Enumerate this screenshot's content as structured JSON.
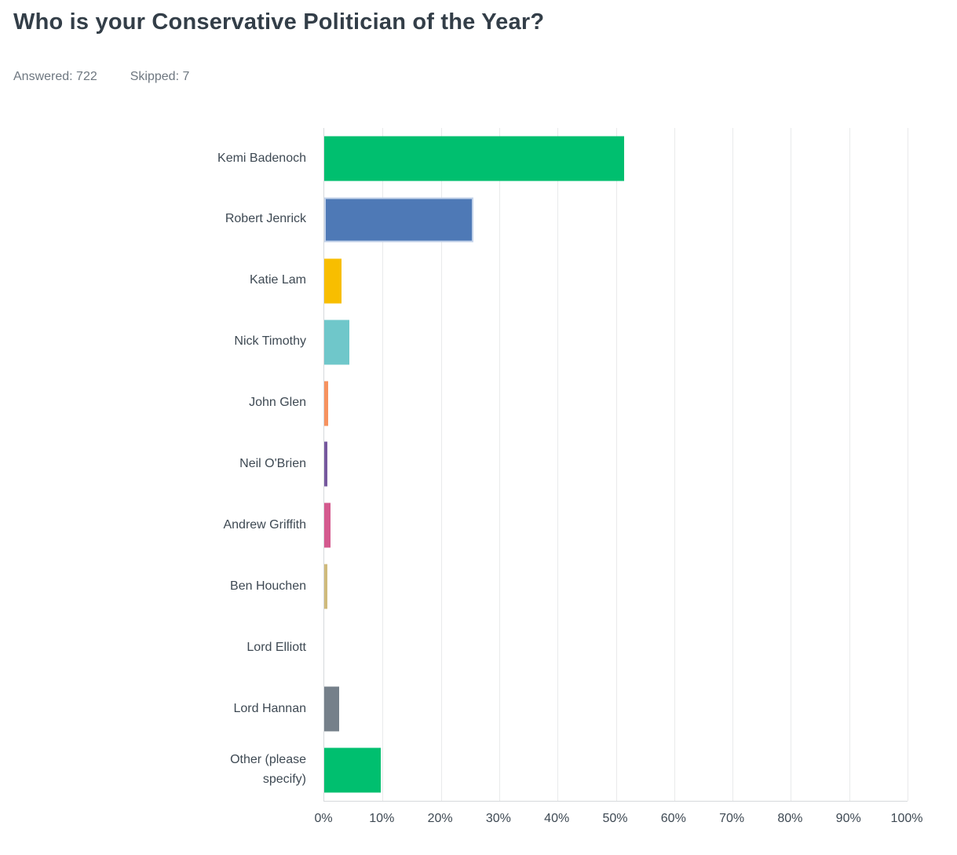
{
  "page": {
    "title": "Who is your Conservative Politician of the Year?",
    "answered_label": "Answered:",
    "answered_value": "722",
    "skipped_label": "Skipped:",
    "skipped_value": "7"
  },
  "colors": {
    "background": "#ffffff",
    "title_text": "#333e48",
    "meta_text": "#6e7780",
    "label_text": "#3e4953",
    "tick_text": "#3e4953",
    "gridline": "#e9eaeb",
    "axis_line": "#d6d9dc",
    "highlight_border": "#c3d2e9"
  },
  "chart_data": {
    "type": "bar",
    "orientation": "horizontal",
    "title": "Who is your Conservative Politician of the Year?",
    "grid": "vertical",
    "legend": "none",
    "xlim": [
      0,
      100
    ],
    "xlabel": "",
    "ylabel": "",
    "x_ticks": [
      "0%",
      "10%",
      "20%",
      "30%",
      "40%",
      "50%",
      "60%",
      "70%",
      "80%",
      "90%",
      "100%"
    ],
    "x_tick_values": [
      0,
      10,
      20,
      30,
      40,
      50,
      60,
      70,
      80,
      90,
      100
    ],
    "categories": [
      "Kemi Badenoch",
      "Robert Jenrick",
      "Katie Lam",
      "Nick Timothy",
      "John Glen",
      "Neil O'Brien",
      "Andrew Griffith",
      "Ben Houchen",
      "Lord Elliott",
      "Lord Hannan",
      "Other (please specify)"
    ],
    "values": [
      51.4,
      25.6,
      3.0,
      4.3,
      0.7,
      0.55,
      1.1,
      0.55,
      0,
      2.5,
      9.7
    ],
    "value_unit": "%",
    "bar_colors": [
      "#00bf6f",
      "#4e79b6",
      "#f8be00",
      "#6fc7ca",
      "#f6925f",
      "#76589e",
      "#d45a8e",
      "#cfba7b",
      "#cfba7b",
      "#75808a",
      "#00bf6f"
    ],
    "highlighted_index": 1
  }
}
